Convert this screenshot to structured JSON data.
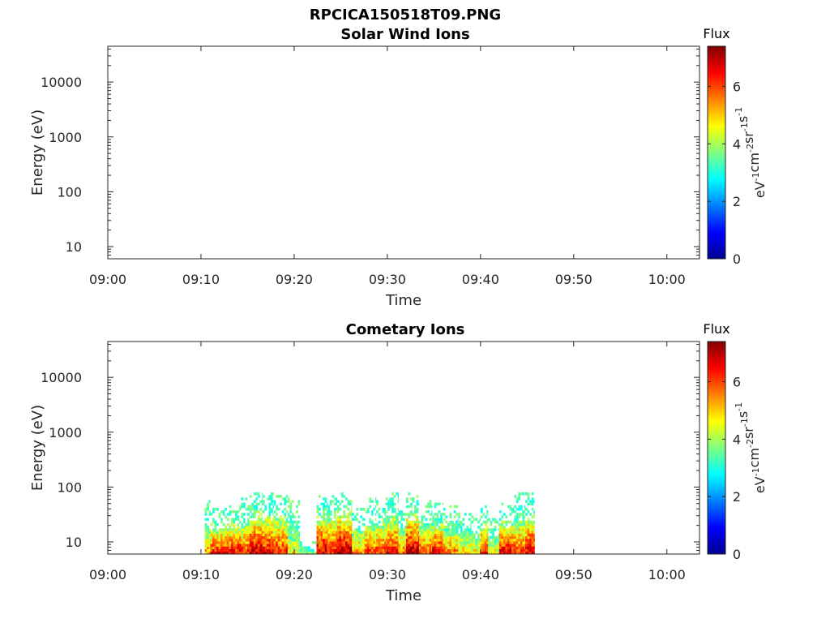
{
  "figure_title": "RPCICA150518T09.PNG",
  "colorbar": {
    "title": "Flux",
    "unit_base": [
      "eV",
      "cm",
      "sr",
      "s"
    ],
    "unit_exp": [
      "-1",
      "-2",
      "-1",
      "-1"
    ],
    "ticks": [
      "0",
      "2",
      "4",
      "6"
    ],
    "range": [
      0,
      7.4
    ],
    "colormap": [
      "#00008f",
      "#0000ff",
      "#0080ff",
      "#00ffff",
      "#80ff80",
      "#ffff00",
      "#ff8000",
      "#ff0000",
      "#800000"
    ]
  },
  "chart_data": [
    {
      "type": "heatmap",
      "title": "Solar Wind Ions",
      "xlabel": "Time",
      "ylabel": "Energy (eV)",
      "xticks": [
        "09:00",
        "09:10",
        "09:20",
        "09:30",
        "09:40",
        "09:50",
        "10:00"
      ],
      "xlim_minutes": [
        0,
        63.5
      ],
      "yscale": "log",
      "ylim": [
        6,
        45000
      ],
      "yticks": [
        "10",
        "100",
        "1000",
        "10000"
      ],
      "cells": []
    },
    {
      "type": "heatmap",
      "title": "Cometary Ions",
      "xlabel": "Time",
      "ylabel": "Energy (eV)",
      "xticks": [
        "09:00",
        "09:10",
        "09:20",
        "09:30",
        "09:40",
        "09:50",
        "10:00"
      ],
      "xlim_minutes": [
        0,
        63.5
      ],
      "yscale": "log",
      "ylim": [
        6,
        45000
      ],
      "yticks": [
        "10",
        "100",
        "1000",
        "10000"
      ],
      "activity": [
        {
          "t0": 10.4,
          "t1": 11.0,
          "peak": 5.2,
          "emax": 55
        },
        {
          "t0": 11.0,
          "t1": 13.0,
          "peak": 6.4,
          "emax": 40
        },
        {
          "t0": 13.0,
          "t1": 14.3,
          "peak": 6.6,
          "emax": 45
        },
        {
          "t0": 14.3,
          "t1": 15.2,
          "peak": 6.0,
          "emax": 60
        },
        {
          "t0": 15.2,
          "t1": 16.6,
          "peak": 7.0,
          "emax": 80
        },
        {
          "t0": 16.6,
          "t1": 17.8,
          "peak": 6.6,
          "emax": 80
        },
        {
          "t0": 17.8,
          "t1": 19.3,
          "peak": 6.3,
          "emax": 80
        },
        {
          "t0": 19.3,
          "t1": 20.6,
          "peak": 4.6,
          "emax": 60
        },
        {
          "t0": 20.6,
          "t1": 22.4,
          "peak": 3.6,
          "emax": 10
        },
        {
          "t0": 22.4,
          "t1": 23.6,
          "peak": 6.8,
          "emax": 80
        },
        {
          "t0": 23.6,
          "t1": 24.6,
          "peak": 6.4,
          "emax": 80
        },
        {
          "t0": 24.6,
          "t1": 26.2,
          "peak": 7.2,
          "emax": 80
        },
        {
          "t0": 26.2,
          "t1": 27.6,
          "peak": 5.4,
          "emax": 40
        },
        {
          "t0": 27.6,
          "t1": 28.8,
          "peak": 6.0,
          "emax": 60
        },
        {
          "t0": 28.8,
          "t1": 29.8,
          "peak": 6.2,
          "emax": 55
        },
        {
          "t0": 29.8,
          "t1": 31.2,
          "peak": 6.4,
          "emax": 80
        },
        {
          "t0": 31.2,
          "t1": 32.0,
          "peak": 5.6,
          "emax": 45
        },
        {
          "t0": 32.0,
          "t1": 33.4,
          "peak": 7.0,
          "emax": 80
        },
        {
          "t0": 33.4,
          "t1": 34.8,
          "peak": 6.0,
          "emax": 55
        },
        {
          "t0": 34.8,
          "t1": 36.0,
          "peak": 6.6,
          "emax": 50
        },
        {
          "t0": 36.0,
          "t1": 37.6,
          "peak": 5.6,
          "emax": 45
        },
        {
          "t0": 37.6,
          "t1": 39.0,
          "peak": 5.0,
          "emax": 35
        },
        {
          "t0": 39.0,
          "t1": 40.0,
          "peak": 4.8,
          "emax": 30
        },
        {
          "t0": 40.0,
          "t1": 40.8,
          "peak": 6.4,
          "emax": 45
        },
        {
          "t0": 40.8,
          "t1": 42.0,
          "peak": 4.6,
          "emax": 25
        },
        {
          "t0": 42.0,
          "t1": 43.6,
          "peak": 6.6,
          "emax": 50
        },
        {
          "t0": 43.6,
          "t1": 44.8,
          "peak": 6.0,
          "emax": 80
        },
        {
          "t0": 44.8,
          "t1": 45.8,
          "peak": 6.8,
          "emax": 80
        }
      ]
    }
  ]
}
